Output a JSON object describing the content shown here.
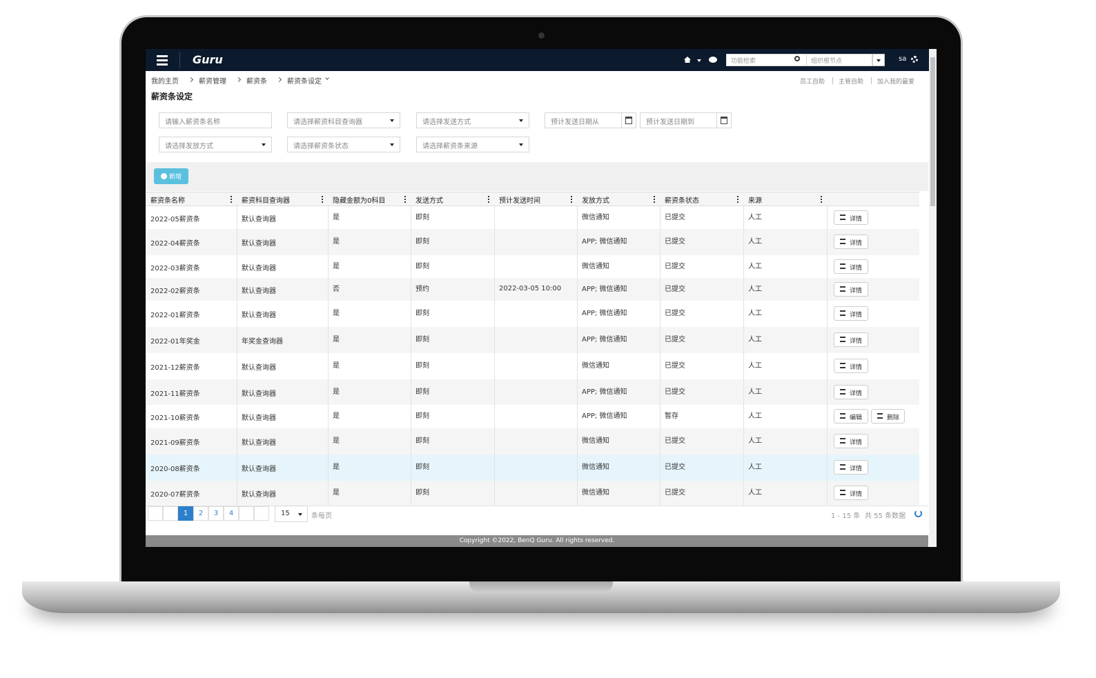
{
  "header": {
    "brand": "Guru",
    "search_placeholder": "功能检索",
    "org_placeholder": "组织根节点",
    "user": "sa"
  },
  "breadcrumb": [
    "我的主页",
    "薪资管理",
    "薪资条",
    "薪资条设定"
  ],
  "quick_links": [
    "员工自助",
    "主管自助",
    "加入我的最爱"
  ],
  "page_title": "薪资条设定",
  "filters": [
    "请输入薪资条名称",
    "请选择薪资科目查询器",
    "请选择发送方式",
    "预计发送日期从",
    "预计发送日期到",
    "请选择发放方式",
    "请选择薪资条状态",
    "请选择薪资条来源"
  ],
  "add_button": "新增",
  "table": {
    "columns": [
      "薪资条名称",
      "薪资科目查询器",
      "隐藏金额为0科目",
      "发送方式",
      "预计发送时间",
      "发放方式",
      "薪资条状态",
      "来源"
    ],
    "rows": [
      {
        "cells": [
          "2022-05薪资条",
          "默认查询器",
          "是",
          "即刻",
          null,
          "微信通知",
          "已提交",
          "人工"
        ],
        "actions": [
          "详情"
        ]
      },
      {
        "cells": [
          "2022-04薪资条",
          "默认查询器",
          "是",
          "即刻",
          null,
          "APP; 微信通知",
          "已提交",
          "人工"
        ],
        "actions": [
          "详情"
        ]
      },
      {
        "cells": [
          "2022-03薪资条",
          "默认查询器",
          "是",
          "即刻",
          null,
          "微信通知",
          "已提交",
          "人工"
        ],
        "actions": [
          "详情"
        ]
      },
      {
        "cells": [
          "2022-02薪资条",
          "默认查询器",
          "否",
          "预约",
          "2022-03-05  10:00",
          "APP; 微信通知",
          "已提交",
          "人工"
        ],
        "actions": [
          "详情"
        ]
      },
      {
        "cells": [
          "2022-01薪资条",
          "默认查询器",
          "是",
          "即刻",
          null,
          "APP; 微信通知",
          "已提交",
          "人工"
        ],
        "actions": [
          "详情"
        ]
      },
      {
        "cells": [
          "2022-01年奖金",
          "年奖金查询器",
          "是",
          "即刻",
          null,
          "APP; 微信通知",
          "已提交",
          "人工"
        ],
        "actions": [
          "详情"
        ]
      },
      {
        "cells": [
          "2021-12薪资条",
          "默认查询器",
          "是",
          "即刻",
          null,
          "微信通知",
          "已提交",
          "人工"
        ],
        "actions": [
          "详情"
        ]
      },
      {
        "cells": [
          "2021-11薪资条",
          "默认查询器",
          "是",
          "即刻",
          null,
          "APP; 微信通知",
          "已提交",
          "人工"
        ],
        "actions": [
          "详情"
        ]
      },
      {
        "cells": [
          "2021-10薪资条",
          "默认查询器",
          "是",
          "即刻",
          null,
          "APP; 微信通知",
          "暂存",
          "人工"
        ],
        "actions": [
          "编辑",
          "删除"
        ]
      },
      {
        "cells": [
          "2021-09薪资条",
          "默认查询器",
          "是",
          "即刻",
          null,
          "微信通知",
          "已提交",
          "人工"
        ],
        "actions": [
          "详情"
        ]
      },
      {
        "cells": [
          "2020-08薪资条",
          "默认查询器",
          "是",
          "即刻",
          null,
          "微信通知",
          "已提交",
          "人工"
        ],
        "actions": [
          "详情"
        ]
      },
      {
        "cells": [
          "2020-07薪资条",
          "默认查询器",
          "是",
          "即刻",
          null,
          "微信通知",
          "已提交",
          "人工"
        ],
        "actions": [
          "详情"
        ]
      }
    ]
  },
  "pagination": {
    "pages": [
      1,
      2,
      3,
      4
    ],
    "current": 1,
    "page_size": 15,
    "per_page_label": "条每页",
    "range": "1 - 15 条",
    "total": "共 55 条数据"
  },
  "footer": "Copyright ©2022, BenQ Guru. All rights reserved."
}
